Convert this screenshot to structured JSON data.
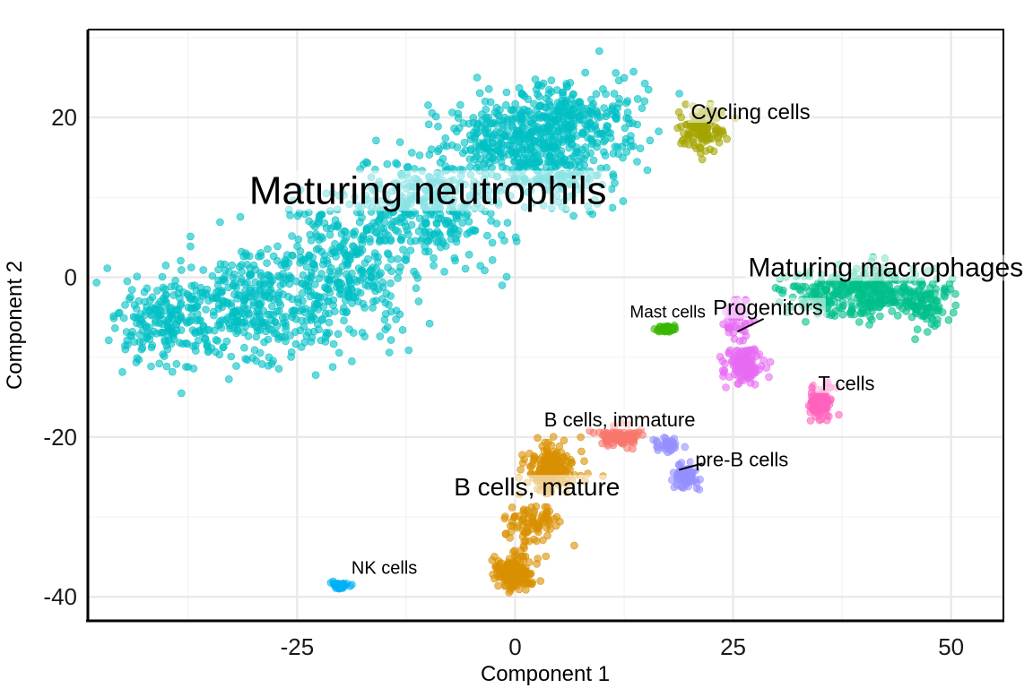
{
  "chart_data": {
    "type": "scatter",
    "title": "",
    "xlabel": "Component 1",
    "ylabel": "Component 2",
    "xlim": [
      -49,
      56
    ],
    "ylim": [
      -43,
      31
    ],
    "x_ticks": [
      -25,
      0,
      25,
      50
    ],
    "y_ticks": [
      -40,
      -20,
      0,
      20
    ],
    "x_tick_labels": [
      "-25",
      "0",
      "25",
      "50"
    ],
    "y_tick_labels": [
      "-40",
      "-20",
      "0",
      "20"
    ],
    "grid": true,
    "legend": "none",
    "clusters": [
      {
        "name": "Maturing neutrophils",
        "color": "#00BFC4",
        "centroid": [
          -10,
          10
        ],
        "blobs": [
          [
            -40,
            -6,
            4,
            4,
            200
          ],
          [
            -30,
            -4,
            6,
            5,
            330
          ],
          [
            -20,
            1,
            6,
            6,
            330
          ],
          [
            -10,
            9,
            6,
            5,
            330
          ],
          [
            0,
            17,
            6,
            4,
            330
          ],
          [
            7,
            20,
            6,
            4,
            260
          ],
          [
            4,
            13,
            5,
            3,
            120
          ]
        ],
        "label": {
          "text": "Maturing neutrophils",
          "x": -10,
          "y": 10.5,
          "size": 44
        }
      },
      {
        "name": "Cycling cells",
        "color": "#A3A500",
        "centroid": [
          21,
          19
        ],
        "blobs": [
          [
            21.5,
            18.5,
            1.6,
            2,
            130
          ]
        ],
        "label": {
          "text": "Cycling cells",
          "x": 27,
          "y": 20.5,
          "size": 24
        }
      },
      {
        "name": "Maturing macrophages",
        "color": "#00C08B",
        "centroid": [
          42,
          -2
        ],
        "blobs": [
          [
            35,
            -2,
            3,
            2,
            110
          ],
          [
            41,
            -2,
            3,
            2.2,
            190
          ],
          [
            47,
            -3,
            2.5,
            2.2,
            120
          ]
        ],
        "label": {
          "text": "Maturing macrophages",
          "x": 42.5,
          "y": 1,
          "size": 30
        }
      },
      {
        "name": "Progenitors",
        "color": "#E76BF3",
        "centroid": [
          26,
          -9
        ],
        "blobs": [
          [
            25.5,
            -5,
            1.2,
            2,
            50
          ],
          [
            26,
            -11,
            1.6,
            1.6,
            130
          ]
        ],
        "label": {
          "text": "Progenitors",
          "x": 29,
          "y": -4,
          "size": 24
        }
      },
      {
        "name": "Mast cells",
        "color": "#39B600",
        "centroid": [
          17,
          -6.5
        ],
        "blobs": [
          [
            17.5,
            -6.5,
            0.9,
            0.3,
            50
          ]
        ],
        "label": {
          "text": "Mast cells",
          "x": 17.5,
          "y": -4.5,
          "size": 19
        }
      },
      {
        "name": "T cells",
        "color": "#FF62BC",
        "centroid": [
          35,
          -16
        ],
        "blobs": [
          [
            35,
            -15.5,
            0.9,
            1.3,
            90
          ]
        ],
        "label": {
          "text": "T cells",
          "x": 38,
          "y": -13.5,
          "size": 22
        }
      },
      {
        "name": "B cells, immature",
        "color": "#F8766D",
        "centroid": [
          12,
          -20
        ],
        "blobs": [
          [
            12,
            -20,
            1.6,
            0.8,
            100
          ]
        ],
        "label": {
          "text": "B cells, immature",
          "x": 12,
          "y": -18,
          "size": 22
        }
      },
      {
        "name": "pre-B cells",
        "color": "#9590FF",
        "centroid": [
          19,
          -24
        ],
        "blobs": [
          [
            17.5,
            -21,
            1,
            0.8,
            35
          ],
          [
            19.5,
            -25,
            0.9,
            1.2,
            70
          ]
        ],
        "label": {
          "text": "pre-B cells",
          "x": 26,
          "y": -23,
          "size": 22
        }
      },
      {
        "name": "B cells, mature",
        "color": "#D89000",
        "centroid": [
          3,
          -30
        ],
        "blobs": [
          [
            4,
            -24,
            2.2,
            2,
            180
          ],
          [
            2,
            -31,
            2,
            2,
            90
          ],
          [
            0,
            -37,
            1.6,
            1.6,
            160
          ]
        ],
        "label": {
          "text": "B cells, mature",
          "x": 2.5,
          "y": -26.5,
          "size": 28
        }
      },
      {
        "name": "NK cells",
        "color": "#00B0F6",
        "centroid": [
          -20,
          -38.5
        ],
        "blobs": [
          [
            -20,
            -38.5,
            0.7,
            0.3,
            50
          ]
        ],
        "label": {
          "text": "NK cells",
          "x": -15,
          "y": -36.5,
          "size": 20
        }
      }
    ]
  }
}
